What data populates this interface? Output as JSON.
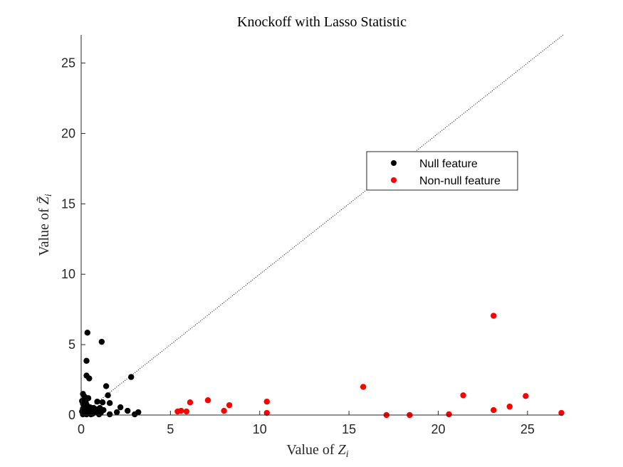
{
  "chart_data": {
    "type": "scatter",
    "title": "Knockoff with Lasso Statistic",
    "xlabel_text": "Value of ",
    "xlabel_symbol": "Z",
    "xlabel_subscript": "i",
    "ylabel_text": "Value of ",
    "ylabel_symbol": "Z̃",
    "ylabel_subscript": "i",
    "xlim": [
      0,
      27
    ],
    "ylim": [
      0,
      27
    ],
    "xticks": [
      0,
      5,
      10,
      15,
      20,
      25
    ],
    "yticks": [
      0,
      5,
      10,
      15,
      20,
      25
    ],
    "grid": false,
    "legend_position": "upper-middle-right",
    "reference_line": {
      "style": "dotted",
      "from": [
        0,
        0
      ],
      "to": [
        27,
        27
      ],
      "color": "#000000"
    },
    "series": [
      {
        "name": "Null feature",
        "color": "#000000",
        "points": [
          [
            0.35,
            5.85
          ],
          [
            1.15,
            5.2
          ],
          [
            0.3,
            3.85
          ],
          [
            0.3,
            2.8
          ],
          [
            0.45,
            2.6
          ],
          [
            2.8,
            2.7
          ],
          [
            1.4,
            2.05
          ],
          [
            1.5,
            1.4
          ],
          [
            0.1,
            1.5
          ],
          [
            0.2,
            1.3
          ],
          [
            0.4,
            1.2
          ],
          [
            0.05,
            1.0
          ],
          [
            0.25,
            0.95
          ],
          [
            0.9,
            0.95
          ],
          [
            1.2,
            0.9
          ],
          [
            1.6,
            0.85
          ],
          [
            0.1,
            0.8
          ],
          [
            0.3,
            0.75
          ],
          [
            0.15,
            0.6
          ],
          [
            0.5,
            0.55
          ],
          [
            0.7,
            0.5
          ],
          [
            1.05,
            0.5
          ],
          [
            2.2,
            0.55
          ],
          [
            0.1,
            0.45
          ],
          [
            0.35,
            0.4
          ],
          [
            0.6,
            0.35
          ],
          [
            0.85,
            0.4
          ],
          [
            1.25,
            0.35
          ],
          [
            2.6,
            0.3
          ],
          [
            0.05,
            0.25
          ],
          [
            0.2,
            0.2
          ],
          [
            0.45,
            0.15
          ],
          [
            0.75,
            0.2
          ],
          [
            1.1,
            0.15
          ],
          [
            2.0,
            0.2
          ],
          [
            3.2,
            0.2
          ],
          [
            0.1,
            0.05
          ],
          [
            0.3,
            0.05
          ],
          [
            0.55,
            0.05
          ],
          [
            0.65,
            0.1
          ],
          [
            1.0,
            0.05
          ],
          [
            1.6,
            0.05
          ],
          [
            3.0,
            0.05
          ],
          [
            0.15,
            0.3
          ]
        ]
      },
      {
        "name": "Non-null feature",
        "color": "#ff0000",
        "points": [
          [
            5.4,
            0.25
          ],
          [
            5.6,
            0.3
          ],
          [
            5.9,
            0.25
          ],
          [
            6.1,
            0.9
          ],
          [
            7.1,
            1.05
          ],
          [
            8.0,
            0.3
          ],
          [
            8.3,
            0.7
          ],
          [
            10.4,
            0.95
          ],
          [
            10.4,
            0.15
          ],
          [
            15.8,
            2.0
          ],
          [
            17.1,
            0.0
          ],
          [
            18.4,
            0.0
          ],
          [
            20.6,
            0.05
          ],
          [
            21.4,
            1.4
          ],
          [
            23.1,
            7.05
          ],
          [
            23.1,
            0.35
          ],
          [
            24.0,
            0.6
          ],
          [
            24.9,
            1.35
          ],
          [
            26.9,
            0.15
          ]
        ]
      }
    ]
  }
}
